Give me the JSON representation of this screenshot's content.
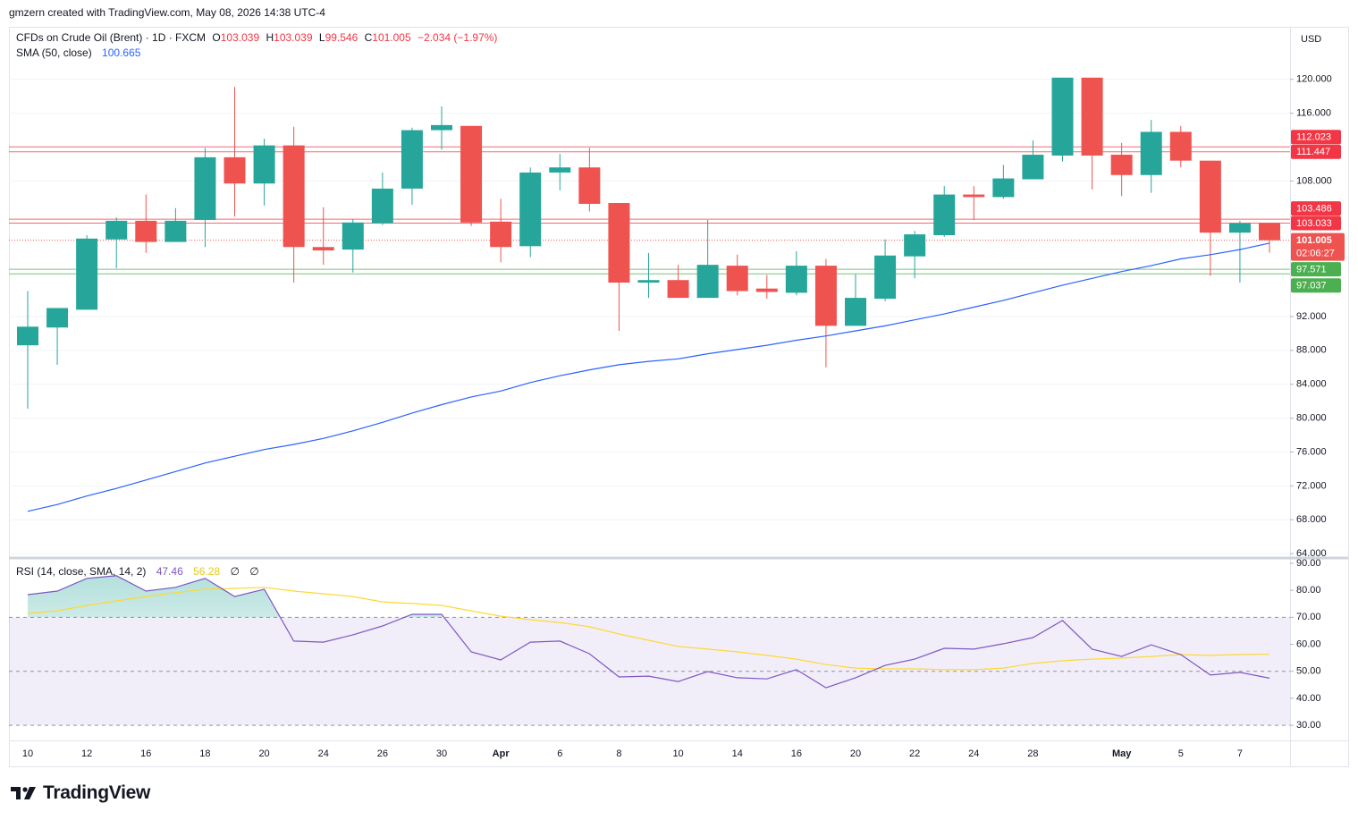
{
  "header": {
    "credit": "gmzern created with TradingView.com, May 08, 2026 14:38 UTC-4",
    "currency": "USD"
  },
  "legend": {
    "symbol": "CFDs on Crude Oil (Brent) · 1D · FXCM",
    "ohlc_labels": [
      "O",
      "H",
      "L",
      "C"
    ],
    "change": "−2.034 (−1.97%)",
    "rsi_name": "RSI (14, close, SMA, 14, 2)",
    "rsi_extra": [
      "∅",
      "∅"
    ]
  },
  "footer": {
    "brand": "TradingView"
  },
  "chart_data": [
    {
      "type": "candlestick",
      "categories": [
        "10",
        null,
        "12",
        null,
        "16",
        null,
        "18",
        null,
        "20",
        null,
        "24",
        null,
        "26",
        null,
        "30",
        null,
        "Apr",
        null,
        "6",
        null,
        "8",
        null,
        "10",
        null,
        "14",
        null,
        "16",
        null,
        "20",
        null,
        "22",
        null,
        "24",
        null,
        "28",
        null,
        null,
        "May",
        null,
        "5",
        null,
        "7",
        null
      ],
      "open": [
        88.6,
        90.7,
        92.8,
        101.1,
        103.3,
        100.8,
        103.4,
        110.8,
        107.7,
        112.2,
        100.2,
        99.9,
        103.0,
        107.1,
        114.0,
        114.5,
        103.2,
        100.3,
        109.0,
        109.6,
        105.4,
        96.0,
        96.3,
        94.2,
        98.0,
        95.3,
        94.8,
        98.0,
        90.9,
        94.1,
        99.1,
        101.6,
        106.4,
        106.1,
        108.2,
        111.0,
        120.2,
        111.1,
        108.7,
        113.8,
        110.4,
        101.9,
        103.039
      ],
      "high": [
        95.0,
        93.0,
        101.6,
        103.7,
        106.4,
        104.8,
        111.9,
        119.1,
        113.0,
        114.4,
        104.9,
        103.5,
        109.0,
        114.3,
        116.8,
        114.5,
        105.9,
        109.6,
        111.2,
        111.9,
        105.4,
        99.5,
        98.1,
        103.4,
        99.3,
        96.9,
        99.7,
        98.8,
        97.0,
        101.1,
        102.1,
        107.4,
        107.4,
        109.9,
        112.8,
        120.2,
        120.2,
        112.5,
        115.2,
        114.5,
        110.4,
        103.3,
        103.039
      ],
      "low": [
        81.1,
        86.3,
        92.8,
        97.7,
        99.5,
        100.8,
        100.2,
        103.8,
        105.1,
        96.0,
        98.1,
        97.2,
        102.8,
        105.2,
        111.7,
        102.7,
        98.4,
        99.0,
        106.9,
        104.4,
        90.3,
        94.2,
        94.2,
        94.2,
        94.5,
        94.1,
        94.5,
        86.0,
        90.9,
        93.8,
        96.5,
        101.4,
        103.4,
        105.9,
        108.2,
        110.3,
        107.0,
        106.2,
        106.6,
        109.6,
        96.8,
        96.0,
        99.546
      ],
      "close": [
        90.8,
        93.0,
        101.2,
        103.3,
        100.8,
        103.3,
        110.8,
        107.7,
        112.2,
        100.2,
        99.8,
        103.1,
        107.1,
        114.0,
        114.6,
        103.1,
        100.2,
        109.0,
        109.6,
        105.3,
        96.0,
        96.3,
        94.2,
        98.1,
        95.0,
        94.9,
        98.0,
        90.9,
        94.2,
        99.2,
        101.7,
        106.4,
        106.1,
        108.3,
        111.1,
        120.2,
        111.0,
        108.7,
        113.8,
        110.4,
        101.9,
        103.0,
        101.005
      ],
      "up_color": "#26a69a",
      "down_color": "#ef5350",
      "sma": {
        "name": "SMA (50, close)",
        "color": "#2962ff",
        "values": [
          69.0,
          69.8,
          70.8,
          71.7,
          72.7,
          73.7,
          74.7,
          75.5,
          76.3,
          76.9,
          77.6,
          78.5,
          79.5,
          80.6,
          81.6,
          82.5,
          83.2,
          84.2,
          85.0,
          85.7,
          86.3,
          86.7,
          87.0,
          87.6,
          88.1,
          88.6,
          89.2,
          89.7,
          90.3,
          90.9,
          91.6,
          92.3,
          93.1,
          93.9,
          94.8,
          95.7,
          96.5,
          97.3,
          98.0,
          98.8,
          99.3,
          99.9,
          100.665
        ]
      },
      "levels": [
        {
          "value": 112.023,
          "color": "#f23645"
        },
        {
          "value": 111.447,
          "color": "#f23645"
        },
        {
          "value": 103.486,
          "color": "#f23645"
        },
        {
          "value": 103.033,
          "color": "#f23645"
        },
        {
          "value": 97.571,
          "color": "#4caf50"
        },
        {
          "value": 97.037,
          "color": "#4caf50"
        }
      ],
      "countdown": "02:06:27",
      "ylim": [
        63.7,
        126.2
      ],
      "yticks": [
        {
          "value": 120,
          "label": "120.000"
        },
        {
          "value": 116,
          "label": "116.000"
        },
        {
          "value": 108,
          "label": "108.000"
        },
        {
          "value": 92,
          "label": "92.000"
        },
        {
          "value": 88,
          "label": "88.000"
        },
        {
          "value": 84,
          "label": "84.000"
        },
        {
          "value": 80,
          "label": "80.000"
        },
        {
          "value": 76,
          "label": "76.000"
        },
        {
          "value": 72,
          "label": "72.000"
        },
        {
          "value": 68,
          "label": "68.000"
        },
        {
          "value": 64,
          "label": "64.000"
        }
      ],
      "grid": true
    },
    {
      "type": "line",
      "series": [
        {
          "name": "RSI",
          "color": "#7e57c2",
          "values": [
            78.4,
            79.7,
            84.4,
            85.4,
            79.7,
            81.1,
            84.4,
            77.7,
            80.4,
            61.2,
            60.8,
            63.5,
            66.8,
            71.1,
            71.1,
            57.2,
            54.2,
            60.8,
            61.2,
            56.5,
            47.9,
            48.2,
            46.2,
            49.9,
            47.6,
            47.2,
            50.6,
            43.9,
            47.6,
            52.2,
            54.5,
            58.5,
            58.2,
            60.2,
            62.5,
            68.8,
            58.2,
            55.5,
            59.8,
            56.2,
            48.6,
            49.6,
            47.46
          ]
        },
        {
          "name": "SMA",
          "color": "#fdd835",
          "values": [
            71.4,
            72.4,
            74.4,
            76.1,
            77.7,
            79.1,
            80.4,
            80.7,
            81.1,
            79.7,
            78.7,
            77.7,
            75.7,
            75.1,
            74.4,
            72.4,
            70.4,
            69.1,
            68.1,
            66.5,
            63.8,
            61.5,
            59.2,
            58.2,
            57.2,
            55.9,
            54.5,
            52.5,
            51.2,
            50.9,
            50.9,
            50.6,
            50.6,
            51.2,
            52.9,
            53.9,
            54.5,
            54.9,
            55.5,
            56.2,
            55.9,
            56.2,
            56.28
          ]
        }
      ],
      "levels": [
        70,
        50,
        30
      ],
      "ylim": [
        24.4,
        91.3
      ],
      "yticks": [
        {
          "value": 90,
          "label": "90.00"
        },
        {
          "value": 80,
          "label": "80.00"
        },
        {
          "value": 70,
          "label": "70.00"
        },
        {
          "value": 60,
          "label": "60.00"
        },
        {
          "value": 50,
          "label": "50.00"
        },
        {
          "value": 40,
          "label": "40.00"
        },
        {
          "value": 30,
          "label": "30.00"
        }
      ]
    }
  ]
}
